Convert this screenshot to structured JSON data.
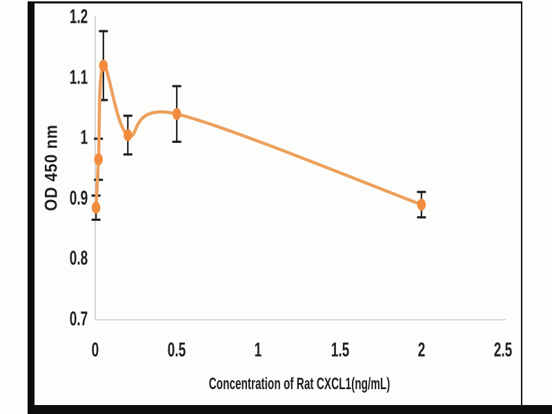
{
  "chart_data": {
    "type": "line",
    "title": "",
    "xlabel": "Concentration of Rat CXCL1(ng/mL)",
    "ylabel": "OD 450 nm",
    "x": [
      0.005,
      0.02,
      0.05,
      0.2,
      0.5,
      2
    ],
    "values": [
      0.885,
      0.965,
      1.12,
      1.005,
      1.04,
      0.89
    ],
    "errors": [
      0.02,
      0.034,
      0.057,
      0.032,
      0.046,
      0.021
    ],
    "xticks": [
      {
        "value": 0,
        "label": "0"
      },
      {
        "value": 0.5,
        "label": "0.5"
      },
      {
        "value": 1,
        "label": "1"
      },
      {
        "value": 1.5,
        "label": "1.5"
      },
      {
        "value": 2,
        "label": "2"
      },
      {
        "value": 2.5,
        "label": "2.5"
      }
    ],
    "yticks": [
      {
        "value": 0.7,
        "label": "0.7"
      },
      {
        "value": 0.8,
        "label": "0.8"
      },
      {
        "value": 0.9,
        "label": "0.9"
      },
      {
        "value": 1,
        "label": "1"
      },
      {
        "value": 1.1,
        "label": "1.1"
      },
      {
        "value": 1.2,
        "label": "1.2"
      }
    ],
    "xlim": [
      0,
      2.5
    ],
    "ylim": [
      0.7,
      1.2
    ],
    "grid": false,
    "legend": false,
    "marker": "ellipse",
    "error_bars": true,
    "style": {
      "line_color": "#ECA05C",
      "marker_color": "#F18C3E",
      "error_bar_color": "#1c1c1c",
      "axis_line_color": "#c9c9c9",
      "text_color": "#1f1f1f",
      "frame_color": "#0c0c0c",
      "background_color": "#fdfdfc"
    }
  }
}
